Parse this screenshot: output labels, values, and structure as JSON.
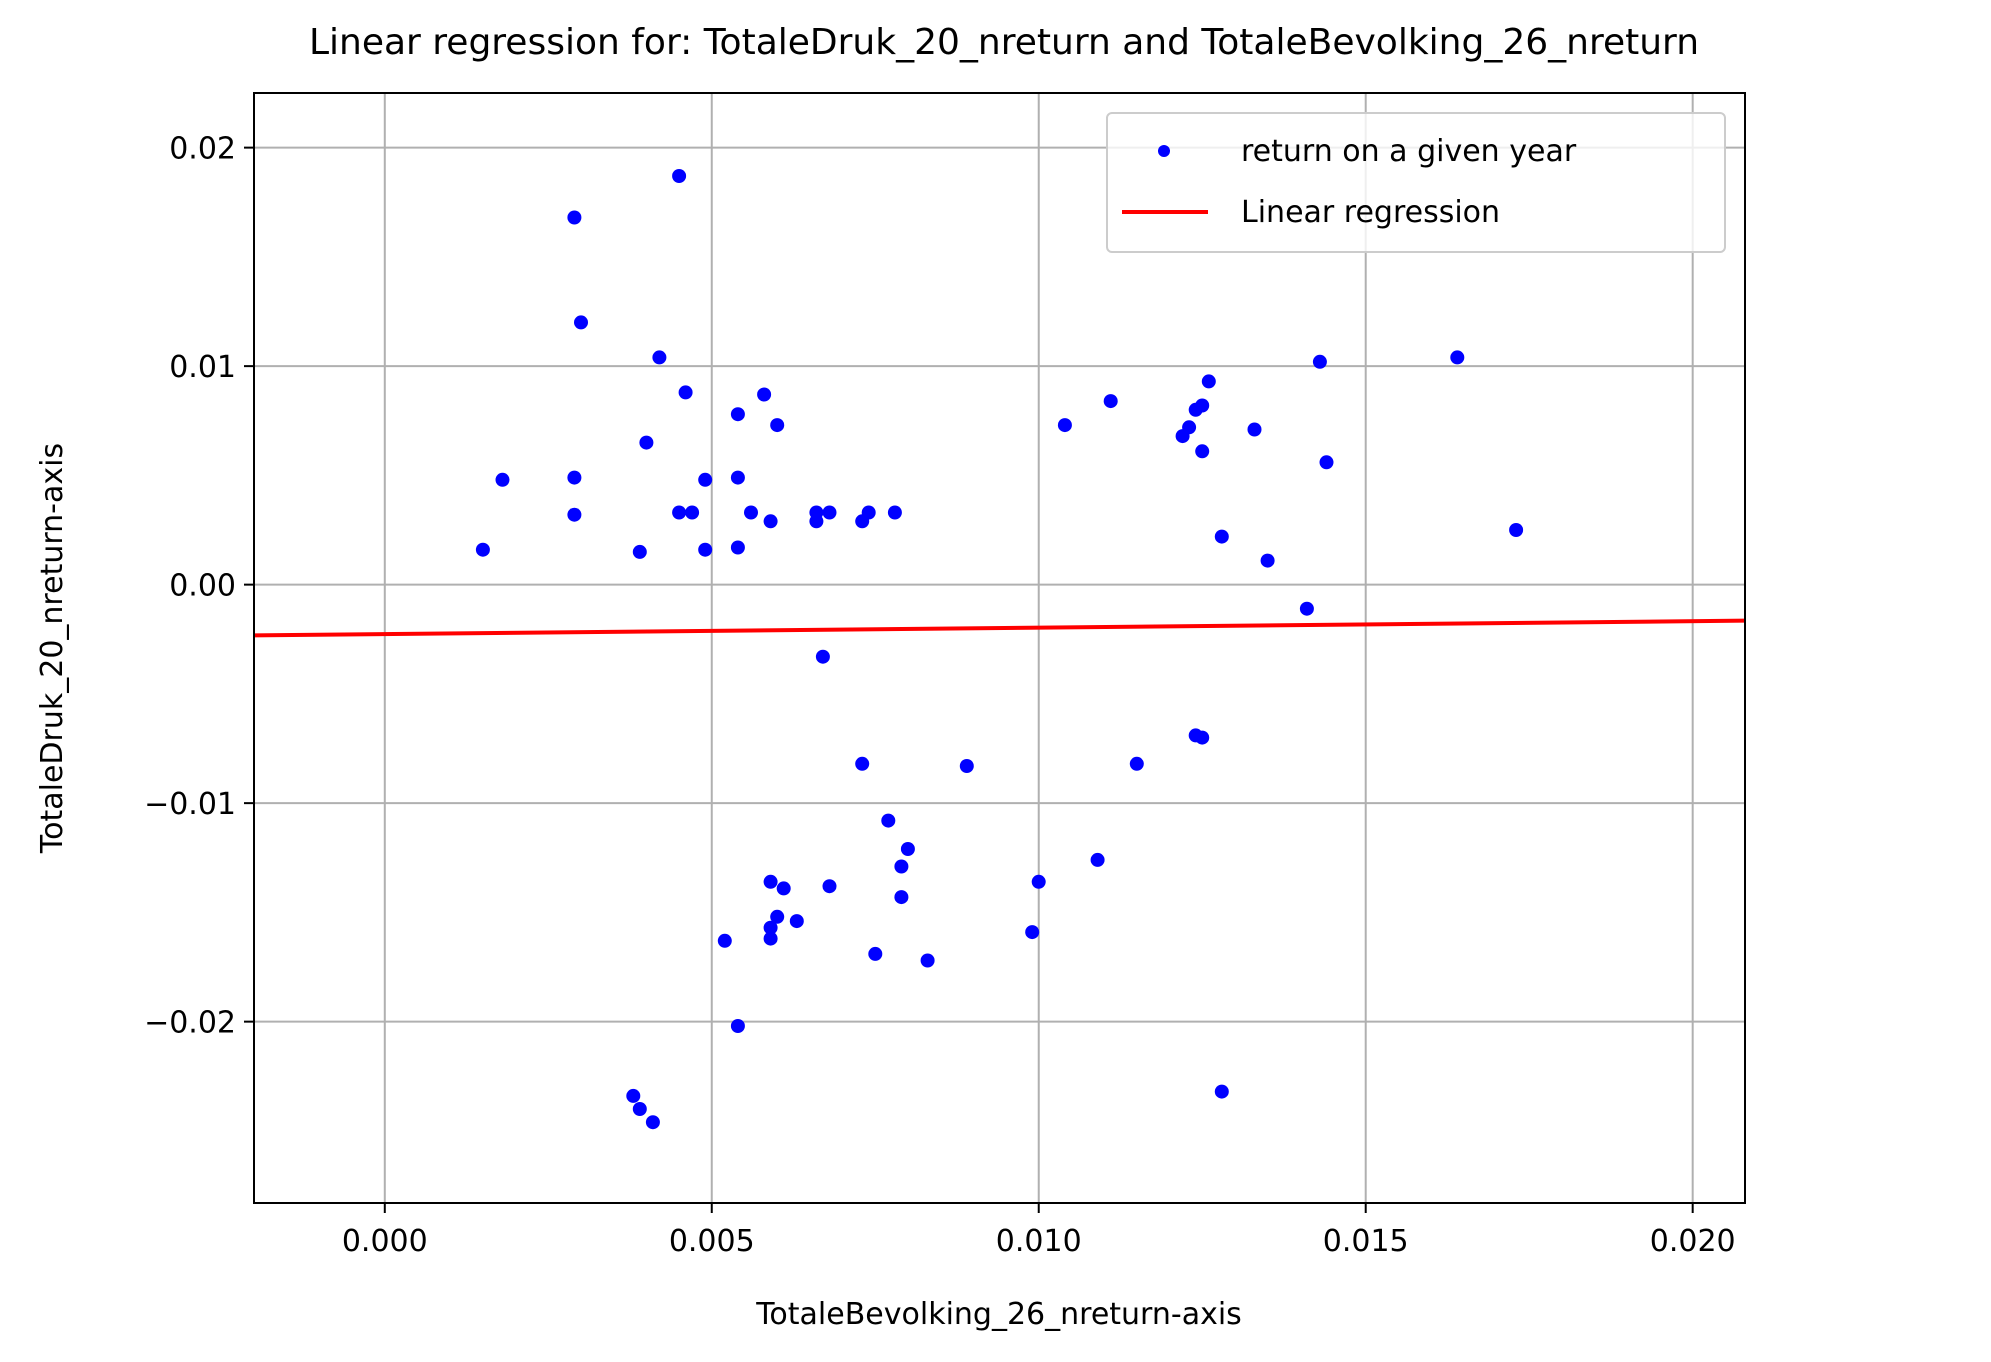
{
  "chart_data": {
    "type": "scatter",
    "title": "Linear regression for: TotaleDruk_20_nreturn and TotaleBevolking_26_nreturn",
    "xlabel": "TotaleBevolking_26_nreturn-axis",
    "ylabel": "TotaleDruk_20_nreturn-axis",
    "xlim": [
      -0.002,
      0.0208
    ],
    "ylim": [
      -0.0283,
      0.0225
    ],
    "x_ticks": [
      0.0,
      0.005,
      0.01,
      0.015,
      0.02
    ],
    "x_tick_labels": [
      "0.000",
      "0.005",
      "0.010",
      "0.015",
      "0.020"
    ],
    "y_ticks": [
      -0.02,
      -0.01,
      0.0,
      0.01,
      0.02
    ],
    "y_tick_labels": [
      "−0.02",
      "−0.01",
      "0.00",
      "0.01",
      "0.02"
    ],
    "grid": true,
    "legend_position": "top-right",
    "series": [
      {
        "name": "return on a given year",
        "kind": "scatter",
        "color": "#0000ff",
        "points": [
          [
            0.0015,
            0.0016
          ],
          [
            0.0018,
            0.0048
          ],
          [
            0.0029,
            0.0032
          ],
          [
            0.0029,
            0.0049
          ],
          [
            0.0029,
            0.0168
          ],
          [
            0.003,
            0.012
          ],
          [
            0.0038,
            -0.0234
          ],
          [
            0.0039,
            0.0015
          ],
          [
            0.0039,
            -0.024
          ],
          [
            0.004,
            0.0065
          ],
          [
            0.0041,
            -0.0246
          ],
          [
            0.0042,
            0.0104
          ],
          [
            0.0045,
            0.0033
          ],
          [
            0.0045,
            0.0187
          ],
          [
            0.0046,
            0.0088
          ],
          [
            0.0047,
            0.0033
          ],
          [
            0.0049,
            0.0016
          ],
          [
            0.0049,
            0.0048
          ],
          [
            0.0052,
            -0.0163
          ],
          [
            0.0054,
            0.0078
          ],
          [
            0.0054,
            0.0017
          ],
          [
            0.0054,
            0.0049
          ],
          [
            0.0054,
            -0.0202
          ],
          [
            0.0056,
            0.0033
          ],
          [
            0.0058,
            0.0087
          ],
          [
            0.0059,
            0.0029
          ],
          [
            0.0059,
            -0.0136
          ],
          [
            0.0059,
            -0.0157
          ],
          [
            0.0059,
            -0.0162
          ],
          [
            0.006,
            0.0073
          ],
          [
            0.006,
            -0.0152
          ],
          [
            0.0061,
            -0.0139
          ],
          [
            0.0063,
            -0.0154
          ],
          [
            0.0066,
            0.0033
          ],
          [
            0.0066,
            0.0029
          ],
          [
            0.0067,
            -0.0033
          ],
          [
            0.0068,
            0.0033
          ],
          [
            0.0068,
            -0.0138
          ],
          [
            0.0073,
            0.0029
          ],
          [
            0.0073,
            -0.0082
          ],
          [
            0.0074,
            0.0033
          ],
          [
            0.0075,
            -0.0169
          ],
          [
            0.0077,
            -0.0108
          ],
          [
            0.0078,
            0.0033
          ],
          [
            0.0079,
            -0.0129
          ],
          [
            0.0079,
            -0.0143
          ],
          [
            0.008,
            -0.0121
          ],
          [
            0.0083,
            -0.0172
          ],
          [
            0.0089,
            -0.0083
          ],
          [
            0.0099,
            -0.0159
          ],
          [
            0.01,
            -0.0136
          ],
          [
            0.0104,
            0.0073
          ],
          [
            0.0109,
            -0.0126
          ],
          [
            0.0111,
            0.0084
          ],
          [
            0.0115,
            -0.0082
          ],
          [
            0.0122,
            0.0068
          ],
          [
            0.0123,
            0.0072
          ],
          [
            0.0124,
            0.008
          ],
          [
            0.0124,
            -0.0069
          ],
          [
            0.0125,
            0.0082
          ],
          [
            0.0125,
            -0.007
          ],
          [
            0.0125,
            0.0061
          ],
          [
            0.0126,
            0.0093
          ],
          [
            0.0128,
            0.0022
          ],
          [
            0.0128,
            -0.0232
          ],
          [
            0.0133,
            0.0071
          ],
          [
            0.0135,
            0.0011
          ],
          [
            0.0141,
            -0.0011
          ],
          [
            0.0143,
            0.0102
          ],
          [
            0.0144,
            0.0056
          ],
          [
            0.0164,
            0.0104
          ],
          [
            0.0173,
            0.0025
          ]
        ]
      },
      {
        "name": "Linear regression",
        "kind": "line",
        "color": "#ff0000",
        "x": [
          -0.002,
          0.0208
        ],
        "y": [
          -0.00232,
          -0.00165
        ]
      }
    ]
  }
}
